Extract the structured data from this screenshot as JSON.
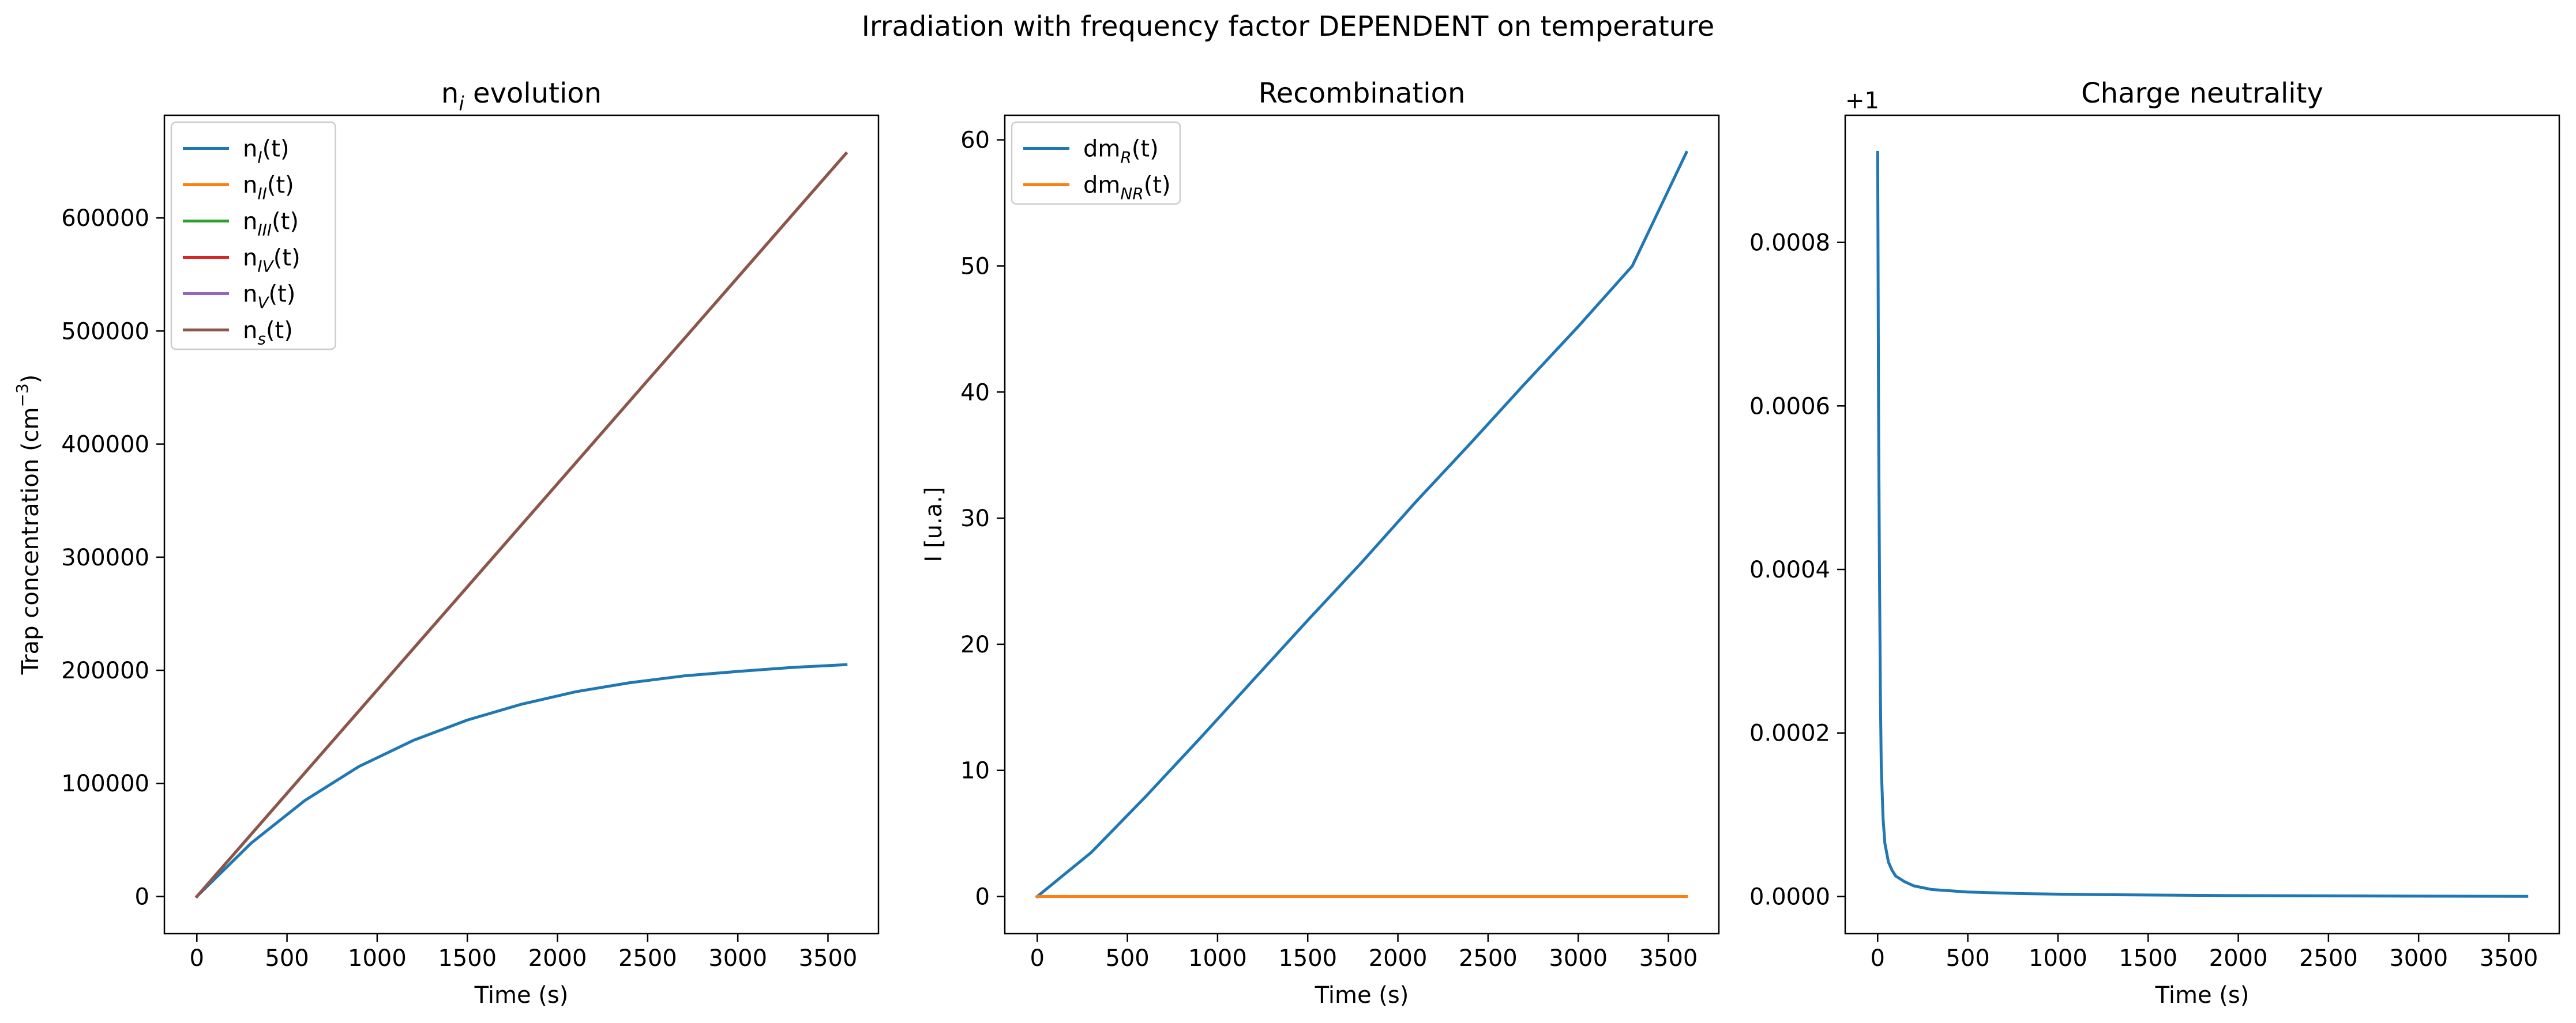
{
  "figure": {
    "suptitle": "Irradiation with frequency factor DEPENDENT on temperature"
  },
  "chart_data": [
    {
      "type": "line",
      "title": "n",
      "title_sub": "i",
      "title_rest": " evolution",
      "xlabel": "Time (s)",
      "ylabel": "Trap concentration (cm",
      "ylabel_sup": "−3",
      "ylabel_rest": ")",
      "xlim": [
        -180,
        3780
      ],
      "ylim": [
        -32895,
        690795
      ],
      "xticks": [
        0,
        500,
        1000,
        1500,
        2000,
        2500,
        3000,
        3500
      ],
      "yticks": [
        0,
        100000,
        200000,
        300000,
        400000,
        500000,
        600000
      ],
      "xtick_labels": [
        "0",
        "500",
        "1000",
        "1500",
        "2000",
        "2500",
        "3000",
        "3500"
      ],
      "ytick_labels": [
        "0",
        "100000",
        "200000",
        "300000",
        "400000",
        "500000",
        "600000"
      ],
      "legend": "upper left",
      "x": [
        0,
        300,
        600,
        900,
        1200,
        1500,
        1800,
        2100,
        2400,
        2700,
        3000,
        3300,
        3600
      ],
      "series": [
        {
          "name": "n",
          "name_sub": "I",
          "name_rest": "(t)",
          "color": "#1f77b4",
          "values": [
            0,
            47000,
            85000,
            115000,
            138000,
            156000,
            170000,
            181000,
            189000,
            195000,
            199000,
            202500,
            205000
          ]
        },
        {
          "name": "n",
          "name_sub": "II",
          "name_rest": "(t)",
          "color": "#ff7f0e",
          "values": [
            0,
            54750,
            109500,
            164250,
            219000,
            273750,
            328500,
            383250,
            438000,
            492750,
            547500,
            602250,
            657000
          ]
        },
        {
          "name": "n",
          "name_sub": "III",
          "name_rest": "(t)",
          "color": "#2ca02c",
          "values": [
            0,
            54750,
            109500,
            164250,
            219000,
            273750,
            328500,
            383250,
            438000,
            492750,
            547500,
            602250,
            657000
          ]
        },
        {
          "name": "n",
          "name_sub": "IV",
          "name_rest": "(t)",
          "color": "#d62728",
          "values": [
            0,
            54750,
            109500,
            164250,
            219000,
            273750,
            328500,
            383250,
            438000,
            492750,
            547500,
            602250,
            657000
          ]
        },
        {
          "name": "n",
          "name_sub": "V",
          "name_rest": "(t)",
          "color": "#9467bd",
          "values": [
            0,
            54750,
            109500,
            164250,
            219000,
            273750,
            328500,
            383250,
            438000,
            492750,
            547500,
            602250,
            657000
          ]
        },
        {
          "name": "n",
          "name_sub": "s",
          "name_rest": "(t)",
          "color": "#8c564b",
          "values": [
            0,
            54750,
            109500,
            164250,
            219000,
            273750,
            328500,
            383250,
            438000,
            492750,
            547500,
            602250,
            657000
          ]
        }
      ]
    },
    {
      "type": "line",
      "title": "Recombination",
      "xlabel": "Time (s)",
      "ylabel": "I [u.a.]",
      "xlim": [
        -180,
        3780
      ],
      "ylim": [
        -2.95,
        61.95
      ],
      "xticks": [
        0,
        500,
        1000,
        1500,
        2000,
        2500,
        3000,
        3500
      ],
      "yticks": [
        0,
        10,
        20,
        30,
        40,
        50,
        60
      ],
      "xtick_labels": [
        "0",
        "500",
        "1000",
        "1500",
        "2000",
        "2500",
        "3000",
        "3500"
      ],
      "ytick_labels": [
        "0",
        "10",
        "20",
        "30",
        "40",
        "50",
        "60"
      ],
      "legend": "upper left",
      "x": [
        0,
        300,
        600,
        900,
        1200,
        1500,
        1800,
        2100,
        2400,
        2700,
        3000,
        3300,
        3600
      ],
      "series": [
        {
          "name": "dm",
          "name_sub": "R",
          "name_rest": "(t)",
          "color": "#1f77b4",
          "values": [
            0,
            3.5,
            7.9,
            12.5,
            17.2,
            21.9,
            26.5,
            31.3,
            35.9,
            40.6,
            45.2,
            50.0,
            59.0
          ]
        },
        {
          "name": "dm",
          "name_sub": "NR",
          "name_rest": "(t)",
          "color": "#ff7f0e",
          "values": [
            0,
            0,
            0,
            0,
            0,
            0,
            0,
            0,
            0,
            0,
            0,
            0,
            0
          ]
        }
      ]
    },
    {
      "type": "line",
      "title": "Charge neutrality",
      "xlabel": "Time (s)",
      "ylabel": "",
      "offset_text": "+1",
      "xlim": [
        -180,
        3780
      ],
      "ylim": [
        -4.55e-05,
        0.0009555
      ],
      "xticks": [
        0,
        500,
        1000,
        1500,
        2000,
        2500,
        3000,
        3500
      ],
      "yticks": [
        0,
        0.0002,
        0.0004,
        0.0006,
        0.0008
      ],
      "xtick_labels": [
        "0",
        "500",
        "1000",
        "1500",
        "2000",
        "2500",
        "3000",
        "3500"
      ],
      "ytick_labels": [
        "0.0000",
        "0.0002",
        "0.0004",
        "0.0006",
        "0.0008"
      ],
      "legend": "none",
      "x": [
        0,
        2,
        5,
        10,
        15,
        20,
        30,
        40,
        60,
        80,
        100,
        150,
        200,
        300,
        500,
        800,
        1200,
        2000,
        3000,
        3600
      ],
      "series": [
        {
          "color": "#1f77b4",
          "values": [
            0.00091,
            0.0008,
            0.0006,
            0.0004,
            0.00025,
            0.00016,
            9.5e-05,
            6.5e-05,
            4.2e-05,
            3.2e-05,
            2.5e-05,
            1.8e-05,
            1.3e-05,
            8.5e-06,
            5.5e-06,
            3.5e-06,
            2.2e-06,
            1e-06,
            4e-07,
            2e-07
          ]
        }
      ]
    }
  ]
}
